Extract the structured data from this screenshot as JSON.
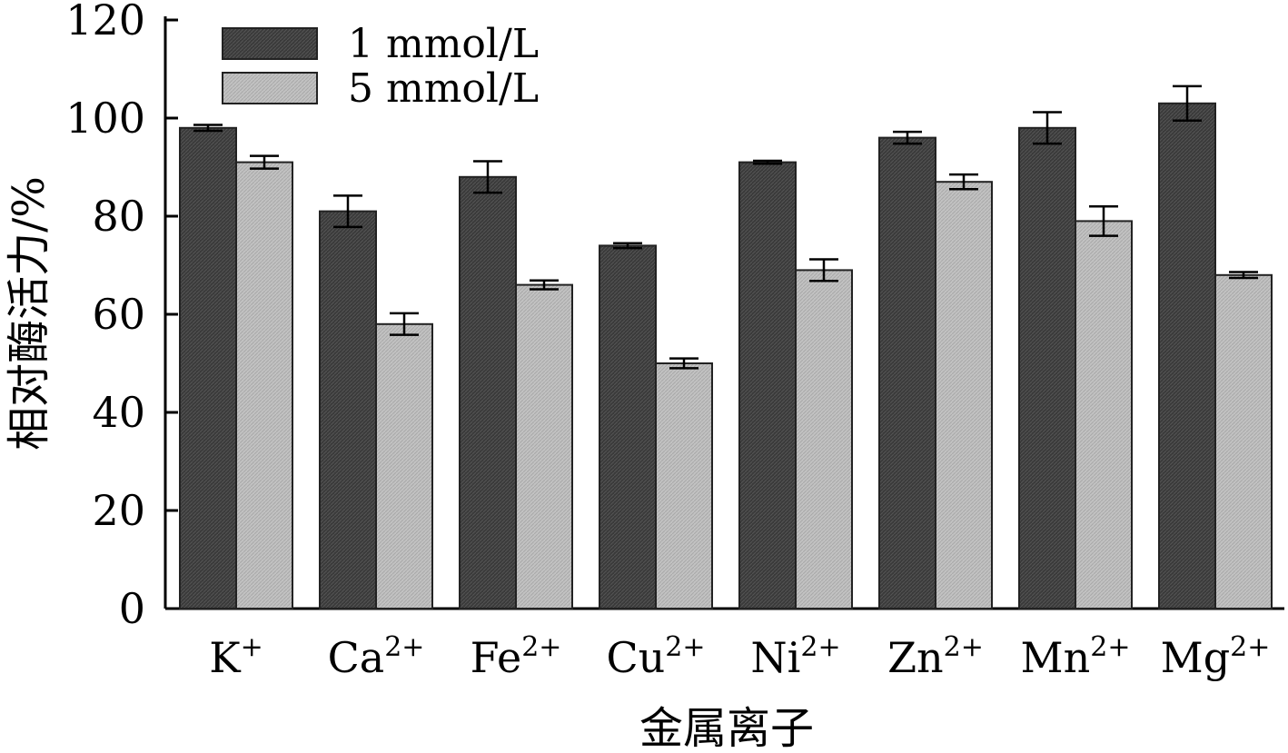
{
  "chart_data": {
    "type": "bar",
    "title": "",
    "xlabel": "金属离子",
    "ylabel": "相对酶活力/%",
    "ylim": [
      0,
      120
    ],
    "yticks": [
      0,
      20,
      40,
      60,
      80,
      100,
      120
    ],
    "grid": false,
    "legend_position": "top-left",
    "categories": [
      {
        "base": "K",
        "charge": "+"
      },
      {
        "base": "Ca",
        "charge": "2+"
      },
      {
        "base": "Fe",
        "charge": "2+"
      },
      {
        "base": "Cu",
        "charge": "2+"
      },
      {
        "base": "Ni",
        "charge": "2+"
      },
      {
        "base": "Zn",
        "charge": "2+"
      },
      {
        "base": "Mn",
        "charge": "2+"
      },
      {
        "base": "Mg",
        "charge": "2+"
      }
    ],
    "series": [
      {
        "name": "1 mmol/L",
        "color": "#3a3a3a",
        "values": [
          98,
          81,
          88,
          74,
          91,
          96,
          98,
          103
        ],
        "errors": [
          0.6,
          3.2,
          3.2,
          0.5,
          0.3,
          1.2,
          3.2,
          3.5
        ]
      },
      {
        "name": "5 mmol/L",
        "color": "#bdbdbd",
        "values": [
          91,
          58,
          66,
          50,
          69,
          87,
          79,
          68
        ],
        "errors": [
          1.3,
          2.2,
          0.9,
          1.0,
          2.2,
          1.5,
          3.0,
          0.6
        ]
      }
    ]
  }
}
